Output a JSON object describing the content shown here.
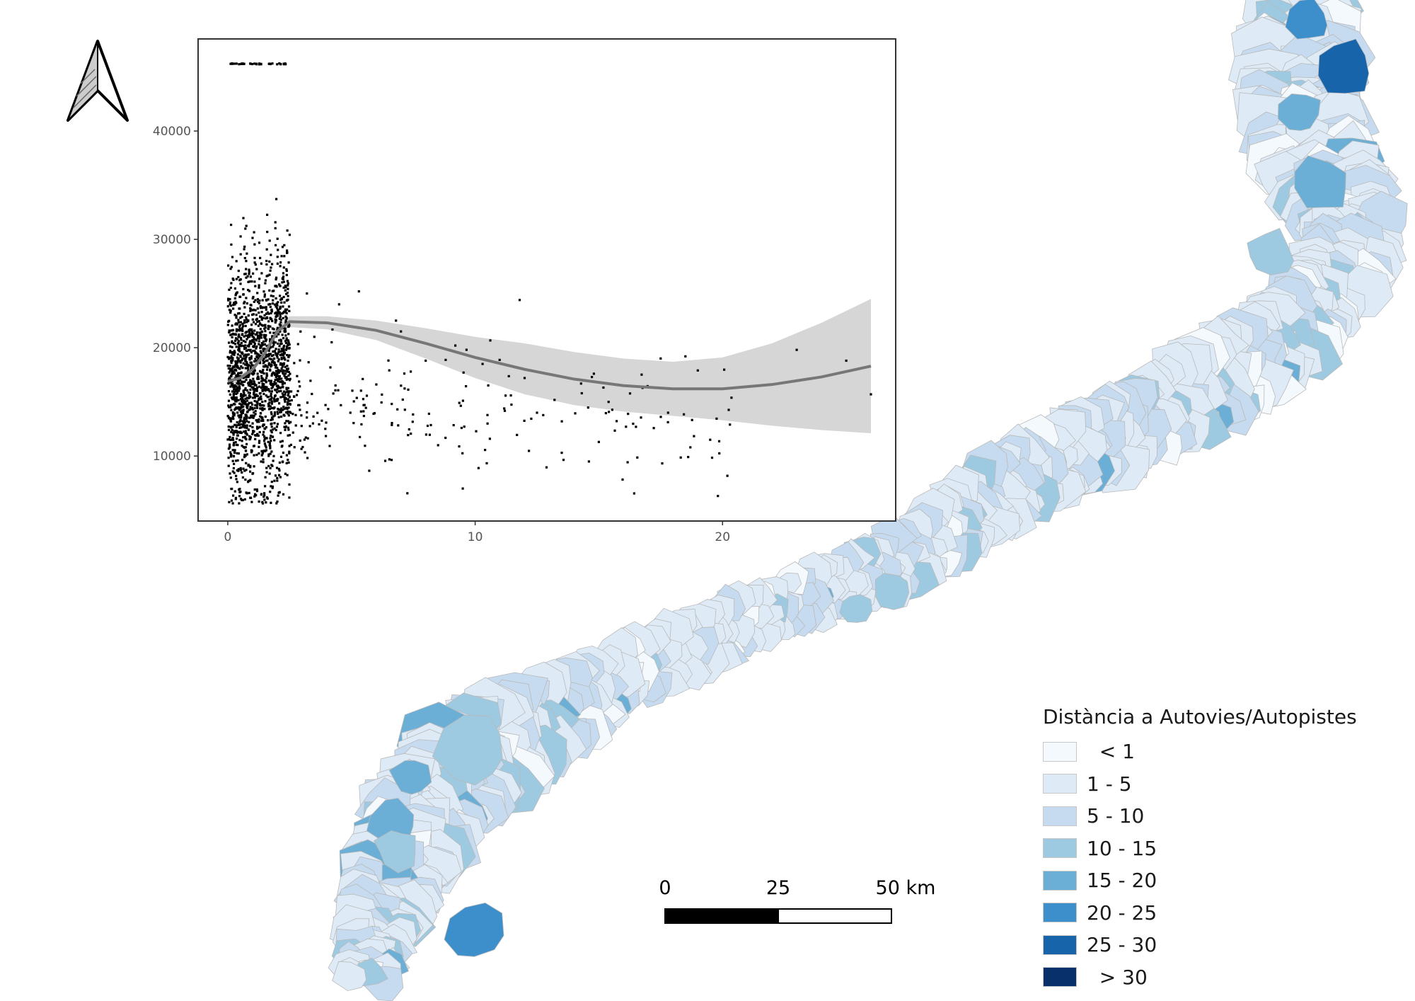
{
  "legend": {
    "title": "Distància a Autovies/Autopistes",
    "items": [
      {
        "label": "  < 1",
        "color": "#f4f9fe"
      },
      {
        "label": "1 - 5",
        "color": "#deebf7"
      },
      {
        "label": "5 - 10",
        "color": "#c6dbef"
      },
      {
        "label": "10 - 15",
        "color": "#9ecae1"
      },
      {
        "label": "15 - 20",
        "color": "#6baed6"
      },
      {
        "label": "20 - 25",
        "color": "#3d8fcc"
      },
      {
        "label": "25 - 30",
        "color": "#1764ab"
      },
      {
        "label": "  > 30",
        "color": "#08306b"
      }
    ]
  },
  "scale_bar": {
    "labels": [
      "0",
      "25",
      "50 km"
    ]
  },
  "north_arrow": {
    "icon": "north-arrow-icon"
  },
  "chart_data": {
    "type": "scatter",
    "title": "",
    "xlabel": "",
    "ylabel": "",
    "xlim": [
      -1.2,
      27
    ],
    "ylim": [
      4000,
      48500
    ],
    "x_ticks": [
      0,
      10,
      20
    ],
    "y_ticks": [
      10000,
      20000,
      30000,
      40000
    ],
    "grid": false,
    "points_sample": [
      [
        3.2,
        25000
      ],
      [
        4.5,
        24000
      ],
      [
        5.3,
        25200
      ],
      [
        11.8,
        24400
      ],
      [
        6.8,
        22500
      ],
      [
        7.0,
        21500
      ],
      [
        3.5,
        21000
      ],
      [
        4.2,
        20500
      ],
      [
        9.2,
        20200
      ],
      [
        8.0,
        18800
      ],
      [
        10.3,
        18500
      ],
      [
        12.0,
        17200
      ],
      [
        14.8,
        17600
      ],
      [
        17.5,
        19000
      ],
      [
        18.5,
        19200
      ],
      [
        19.0,
        17900
      ],
      [
        23.0,
        19800
      ],
      [
        25.0,
        18800
      ],
      [
        26.0,
        15700
      ],
      [
        9.5,
        7000
      ],
      [
        13.5,
        10300
      ],
      [
        15.0,
        11300
      ],
      [
        18.7,
        10800
      ],
      [
        19.5,
        11500
      ],
      [
        20.3,
        12900
      ],
      [
        16.5,
        12700
      ],
      [
        17.8,
        14000
      ],
      [
        10.5,
        13000
      ],
      [
        12.5,
        14000
      ],
      [
        8.5,
        11000
      ]
    ],
    "smooth": {
      "x": [
        0,
        0.5,
        1,
        1.5,
        2,
        2.5,
        4,
        6,
        8,
        10,
        12,
        14,
        16,
        18,
        20,
        22,
        24,
        26
      ],
      "y": [
        16900,
        17200,
        18000,
        19500,
        21500,
        22400,
        22300,
        21600,
        20400,
        19100,
        18000,
        17100,
        16500,
        16200,
        16200,
        16600,
        17300,
        18300
      ],
      "ci_low": [
        16500,
        16900,
        17700,
        19200,
        21100,
        21900,
        21700,
        20700,
        19000,
        17200,
        15700,
        14700,
        14100,
        13700,
        13300,
        12800,
        12400,
        12100
      ],
      "ci_high": [
        17300,
        17500,
        18300,
        19800,
        21900,
        22900,
        22900,
        22500,
        21800,
        21000,
        20400,
        19600,
        19000,
        18700,
        19100,
        20400,
        22300,
        24500
      ]
    },
    "cap_value": 46200
  }
}
